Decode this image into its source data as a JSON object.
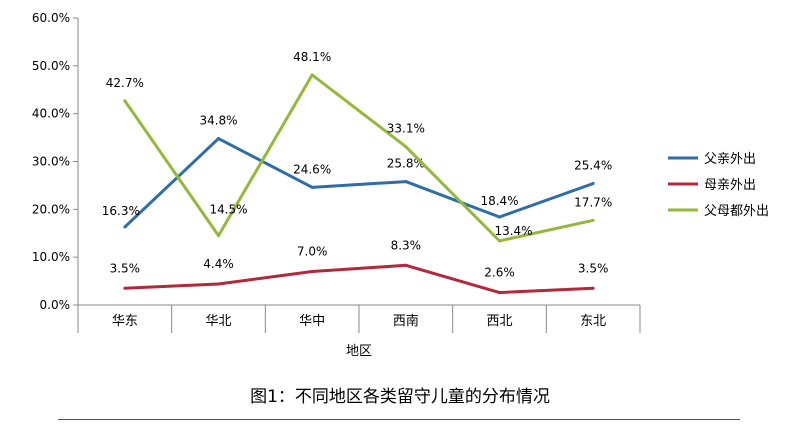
{
  "caption": "图1：不同地区各类留守儿童的分布情况",
  "chart_data": {
    "type": "line",
    "categories": [
      "华东",
      "华北",
      "华中",
      "西南",
      "西北",
      "东北"
    ],
    "xlabel": "地区",
    "ylabel": "",
    "ylim": [
      0,
      60
    ],
    "yticks": [
      "0.0%",
      "10.0%",
      "20.0%",
      "30.0%",
      "40.0%",
      "50.0%",
      "60.0%"
    ],
    "grid": false,
    "legend_position": "right",
    "series": [
      {
        "name": "父亲外出",
        "color": "#2e6da8",
        "values": [
          16.3,
          34.8,
          24.6,
          25.8,
          18.4,
          25.4
        ],
        "labels": [
          "16.3%",
          "34.8%",
          "24.6%",
          "25.8%",
          "18.4%",
          "25.4%"
        ]
      },
      {
        "name": "母亲外出",
        "color": "#b3283a",
        "values": [
          3.5,
          4.4,
          7.0,
          8.3,
          2.6,
          3.5
        ],
        "labels": [
          "3.5%",
          "4.4%",
          "7.0%",
          "8.3%",
          "2.6%",
          "3.5%"
        ]
      },
      {
        "name": "父母都外出",
        "color": "#94b93a",
        "values": [
          42.7,
          14.5,
          48.1,
          33.1,
          13.4,
          17.7
        ],
        "labels": [
          "42.7%",
          "14.5%",
          "48.1%",
          "33.1%",
          "13.4%",
          "17.7%"
        ]
      }
    ]
  }
}
